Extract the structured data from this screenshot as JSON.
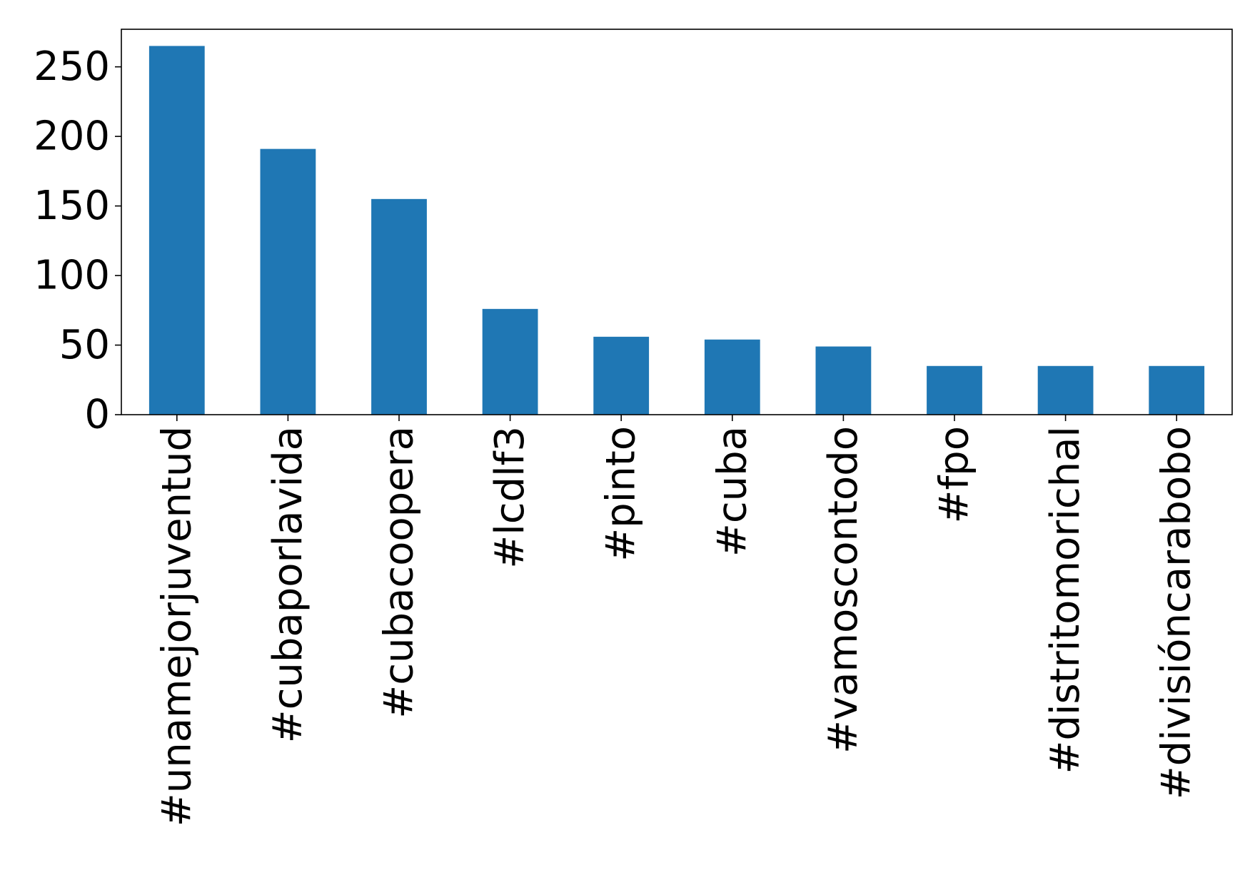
{
  "chart_data": {
    "type": "bar",
    "title": "",
    "xlabel": "",
    "ylabel": "",
    "categories": [
      "#unamejorjuventud",
      "#cubaporlavida",
      "#cubacoopera",
      "#lcdlf3",
      "#pinto",
      "#cuba",
      "#vamoscontodo",
      "#fpo",
      "#distritomorichal",
      "#divisióncarabobo"
    ],
    "values": [
      265,
      191,
      155,
      76,
      56,
      54,
      49,
      35,
      35,
      35
    ],
    "ylim": [
      0,
      277
    ],
    "yticks": [
      0,
      50,
      100,
      150,
      200,
      250
    ],
    "grid": false,
    "legend": "none",
    "bar_color": "#1f77b4"
  }
}
